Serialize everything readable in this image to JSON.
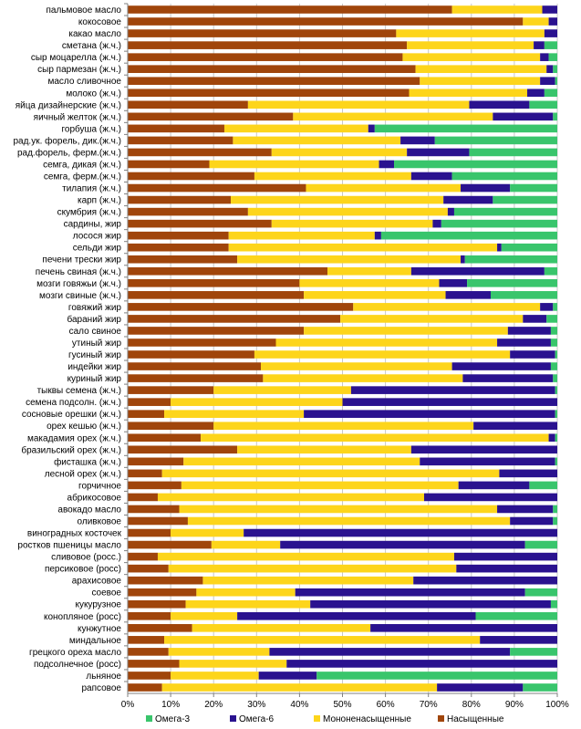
{
  "chart_data": {
    "type": "bar",
    "orientation": "horizontal",
    "stacked": "percent",
    "xlim": [
      0,
      100
    ],
    "x_ticks": [
      "0%",
      "10%",
      "20%",
      "30%",
      "40%",
      "50%",
      "60%",
      "70%",
      "80%",
      "90%",
      "100%"
    ],
    "grid": true,
    "legend_position": "bottom",
    "categories": [
      "пальмовое масло",
      "кокосовое",
      "какао масло",
      "сметана (ж.ч.)",
      "сыр моцарелла (ж.ч.)",
      "сыр пармезан (ж.ч.)",
      "масло сливочное",
      "молоко (ж.ч.)",
      "яйца дизайнерские (ж.ч.)",
      "яичный желток (ж.ч.)",
      "горбуша (ж.ч.)",
      "рад.ук. форель, дик.(ж.ч.)",
      "рад.форель, ферм.(ж.ч.)",
      "семга, дикая (ж.ч.)",
      "семга, ферм.(ж.ч.)",
      "тилапия (ж.ч.)",
      "карп (ж.ч.)",
      "скумбрия (ж.ч.)",
      "сардины, жир",
      "лосося жир",
      "сельди жир",
      "печени трески жир",
      "печень свиная (ж.ч.)",
      "мозги говяжьи (ж.ч.)",
      "мозги свиные (ж.ч.)",
      "говяжий жир",
      "бараний жир",
      "сало свиное",
      "утиный жир",
      "гусиный жир",
      "индейки жир",
      "куриный жир",
      "тыквы семена (ж.ч.)",
      "семена подсолн. (ж.ч.)",
      "сосновые орешки (ж.ч.)",
      "орех кешью (ж.ч.)",
      "макадамия орех (ж.ч.)",
      "бразильский орех (ж.ч.)",
      "фисташка (ж.ч.)",
      "лесной орех (ж.ч.)",
      "горчичное",
      "абрикосовое",
      "авокадо масло",
      "оливковое",
      "виноградных косточек",
      "ростков пшеницы масло",
      "сливовое (росс.)",
      "персиковое (росс)",
      "арахисовое",
      "соевое",
      "кукурузное",
      "конопляное (росс)",
      "кунжутное",
      "миндальное",
      "грецкого ореха масло",
      "подсолнечное (росс)",
      "льняное",
      "рапсовое"
    ],
    "series": [
      {
        "name": "Насыщенные",
        "color": "#a0450b",
        "values": [
          75.5,
          92,
          62.5,
          65,
          64,
          67,
          68,
          65.5,
          28,
          38.5,
          22.5,
          24.5,
          33.5,
          19,
          29.5,
          41.5,
          24,
          28,
          33.5,
          23.5,
          23.5,
          25.5,
          46.5,
          40,
          41,
          52.5,
          49.5,
          41,
          34.5,
          29.5,
          31,
          31.5,
          20,
          10,
          8.5,
          20,
          17,
          25.5,
          13,
          8,
          12.5,
          7,
          12,
          14,
          10,
          19.5,
          7,
          9.5,
          17.5,
          16,
          13.5,
          10,
          15,
          8.5,
          9.5,
          12,
          10,
          8
        ]
      },
      {
        "name": "Мононенасыщенные",
        "color": "#fdd51b",
        "values": [
          21,
          6,
          34.5,
          29.5,
          32,
          30.5,
          28,
          27.5,
          51.5,
          46.5,
          33.5,
          39,
          31.5,
          39.5,
          36.5,
          36,
          49.5,
          46.5,
          37.5,
          34,
          62.5,
          52,
          19.5,
          32.5,
          33,
          43.5,
          42.5,
          47.5,
          51.5,
          59.5,
          44.5,
          46.5,
          32,
          40,
          32.5,
          60.5,
          81,
          40.5,
          55,
          78.5,
          64.5,
          62,
          74,
          75,
          17,
          16,
          69,
          67,
          49,
          23,
          29,
          15.5,
          41.5,
          73.5,
          23.5,
          25,
          20.5,
          64
        ]
      },
      {
        "name": "Омега-6",
        "color": "#2a128f",
        "values": [
          3.5,
          2,
          3,
          2.5,
          2,
          1.5,
          3.5,
          4,
          14,
          14,
          1.5,
          8,
          14.5,
          3.5,
          9.5,
          11.5,
          11.5,
          1.5,
          2,
          1.5,
          1,
          1,
          31,
          6.5,
          10.5,
          3,
          5.5,
          10,
          12.5,
          10.5,
          23,
          21,
          47.5,
          50,
          58.5,
          19.5,
          1.5,
          34,
          31.5,
          13.5,
          16.5,
          31,
          13,
          10,
          73,
          57,
          24,
          23.5,
          33.5,
          53.5,
          56,
          55.5,
          43.5,
          18,
          56,
          63,
          13.5,
          20
        ]
      },
      {
        "name": "Омега-3",
        "color": "#39c56c",
        "values": [
          0,
          0,
          0,
          3,
          2,
          1,
          0.5,
          3,
          6.5,
          1,
          42.5,
          28.5,
          20.5,
          38,
          24.5,
          11,
          15,
          24,
          27,
          41,
          13,
          21.5,
          3,
          21,
          15.5,
          1,
          2.5,
          1.5,
          1.5,
          0.5,
          1.5,
          1,
          0.5,
          0,
          0.5,
          0,
          0.5,
          0,
          0.5,
          0,
          6.5,
          0,
          1,
          1,
          0,
          7.5,
          0,
          0,
          0,
          7.5,
          1.5,
          19,
          0,
          0,
          11,
          0,
          56,
          8
        ]
      }
    ],
    "legend": [
      "Омега-3",
      "Омега-6",
      "Мононенасыщенные",
      "Насыщенные"
    ]
  }
}
